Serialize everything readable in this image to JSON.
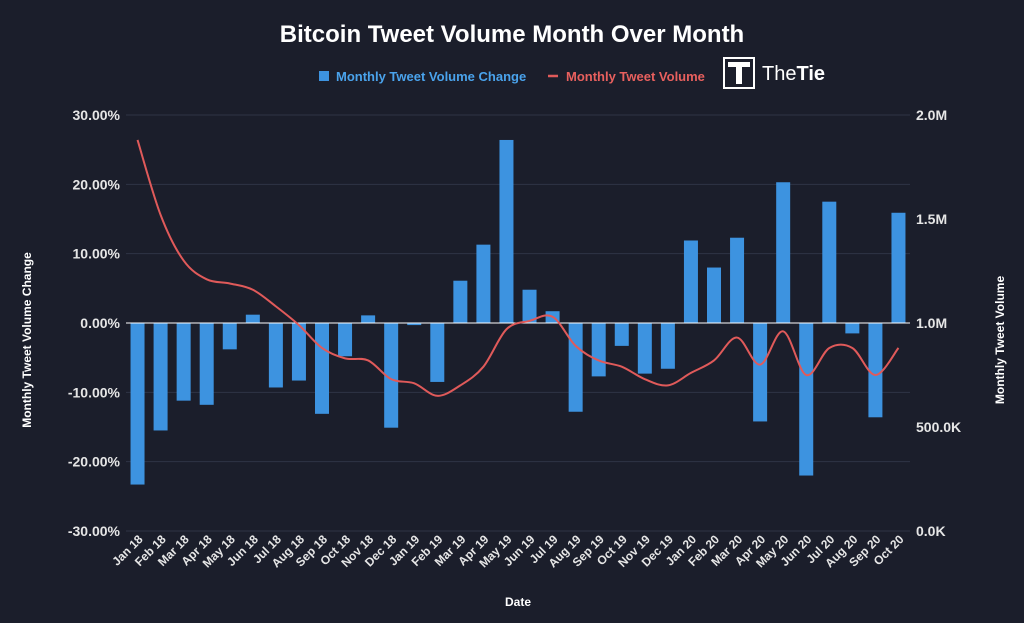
{
  "colors": {
    "background": "#1b1e2b",
    "bar": "#3d93e0",
    "line": "#e05a5a",
    "grid": "#2f3446",
    "text": "#ffffff"
  },
  "logo": {
    "icon": "thetie-logo-icon",
    "text_plain": "The",
    "text_bold": "Tie"
  },
  "chart_data": {
    "type": "bar",
    "title": "Bitcoin Tweet Volume Month Over Month",
    "xlabel": "Date",
    "ylabel": "Monthly Tweet Volume Change",
    "y2label": "Monthly Tweet Volume",
    "ylim": [
      -0.3,
      0.3
    ],
    "y2lim": [
      0,
      2000000
    ],
    "yticks": [
      "30.00%",
      "20.00%",
      "10.00%",
      "0.00%",
      "-10.00%",
      "-20.00%",
      "-30.00%"
    ],
    "y2ticks": [
      "2.0M",
      "1.5M",
      "1.0M",
      "500.0K",
      "0.0K"
    ],
    "grid": true,
    "legend_position": "top-center",
    "categories": [
      "Jan 18",
      "Feb 18",
      "Mar 18",
      "Apr 18",
      "May 18",
      "Jun 18",
      "Jul 18",
      "Aug 18",
      "Sep 18",
      "Oct 18",
      "Nov 18",
      "Dec 18",
      "Jan 19",
      "Feb 19",
      "Mar 19",
      "Apr 19",
      "May 19",
      "Jun 19",
      "Jul 19",
      "Aug 19",
      "Sep 19",
      "Oct 19",
      "Nov 19",
      "Dec 19",
      "Jan 20",
      "Feb 20",
      "Mar 20",
      "Apr 20",
      "May 20",
      "Jun 20",
      "Jul 20",
      "Aug 20",
      "Sep 20",
      "Oct 20"
    ],
    "series": [
      {
        "name": "Monthly Tweet Volume Change",
        "type": "bar",
        "axis": "left",
        "values": [
          -0.233,
          -0.155,
          -0.112,
          -0.118,
          -0.038,
          0.012,
          -0.093,
          -0.083,
          -0.131,
          -0.048,
          0.011,
          -0.151,
          -0.003,
          -0.085,
          0.061,
          0.113,
          0.264,
          0.048,
          0.017,
          -0.128,
          -0.077,
          -0.033,
          -0.073,
          -0.066,
          0.119,
          0.08,
          0.123,
          -0.142,
          0.203,
          -0.22,
          0.175,
          -0.015,
          -0.136,
          0.159
        ]
      },
      {
        "name": "Monthly Tweet Volume",
        "type": "line",
        "axis": "right",
        "values": [
          1880000,
          1520000,
          1300000,
          1210000,
          1190000,
          1160000,
          1080000,
          990000,
          880000,
          830000,
          820000,
          730000,
          710000,
          650000,
          700000,
          790000,
          970000,
          1010000,
          1030000,
          890000,
          820000,
          790000,
          730000,
          700000,
          760000,
          820000,
          930000,
          800000,
          960000,
          750000,
          880000,
          880000,
          750000,
          880000
        ]
      }
    ]
  }
}
